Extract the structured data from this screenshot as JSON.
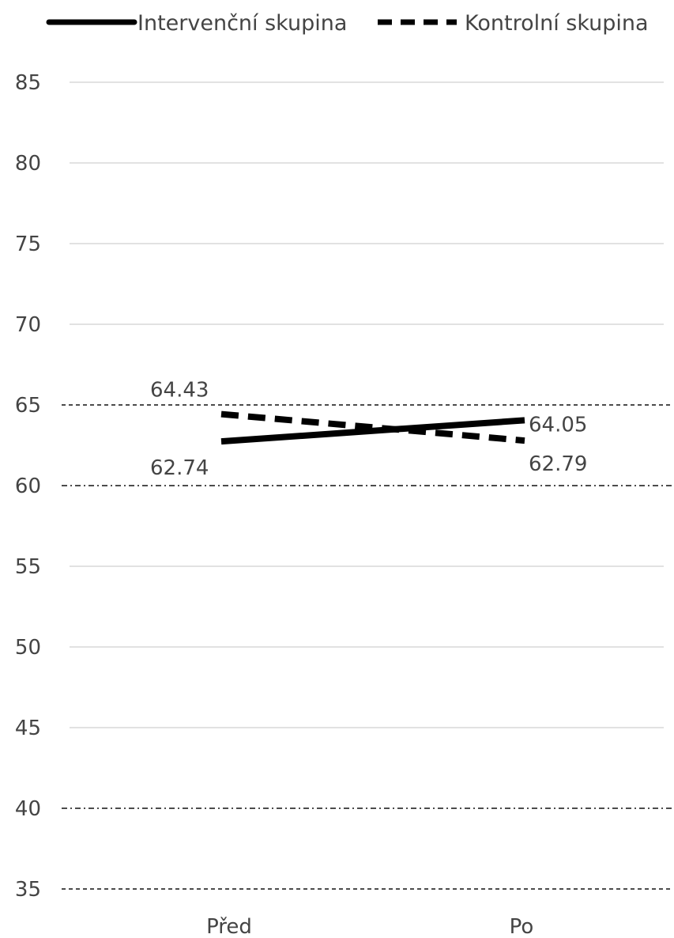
{
  "chart_data": {
    "type": "line",
    "categories": [
      "Před",
      "Po"
    ],
    "series": [
      {
        "name": "Intervenční skupina",
        "values": [
          62.74,
          64.05
        ],
        "style": "solid"
      },
      {
        "name": "Kontrolní skupina",
        "values": [
          64.43,
          62.79
        ],
        "style": "dashed"
      }
    ],
    "data_labels": [
      "62.74",
      "64.05",
      "64.43",
      "62.79"
    ],
    "ylim": [
      35,
      85
    ],
    "yticks": [
      35,
      40,
      45,
      50,
      55,
      60,
      65,
      70,
      75,
      80,
      85
    ],
    "ytick_labels": [
      "35",
      "40",
      "45",
      "50",
      "55",
      "60",
      "65",
      "70",
      "75",
      "80",
      "85"
    ],
    "reference_lines": [
      {
        "value": 35,
        "style": "dashed"
      },
      {
        "value": 40,
        "style": "dash-dot"
      },
      {
        "value": 60,
        "style": "dash-dot"
      },
      {
        "value": 65,
        "style": "dashed"
      }
    ],
    "grid": true,
    "legend_position": "top",
    "title": "",
    "xlabel": "",
    "ylabel": "",
    "colors": {
      "series": "#000000",
      "grid": "#d9d9d9",
      "reference": "#333333",
      "text": "#444444"
    }
  }
}
